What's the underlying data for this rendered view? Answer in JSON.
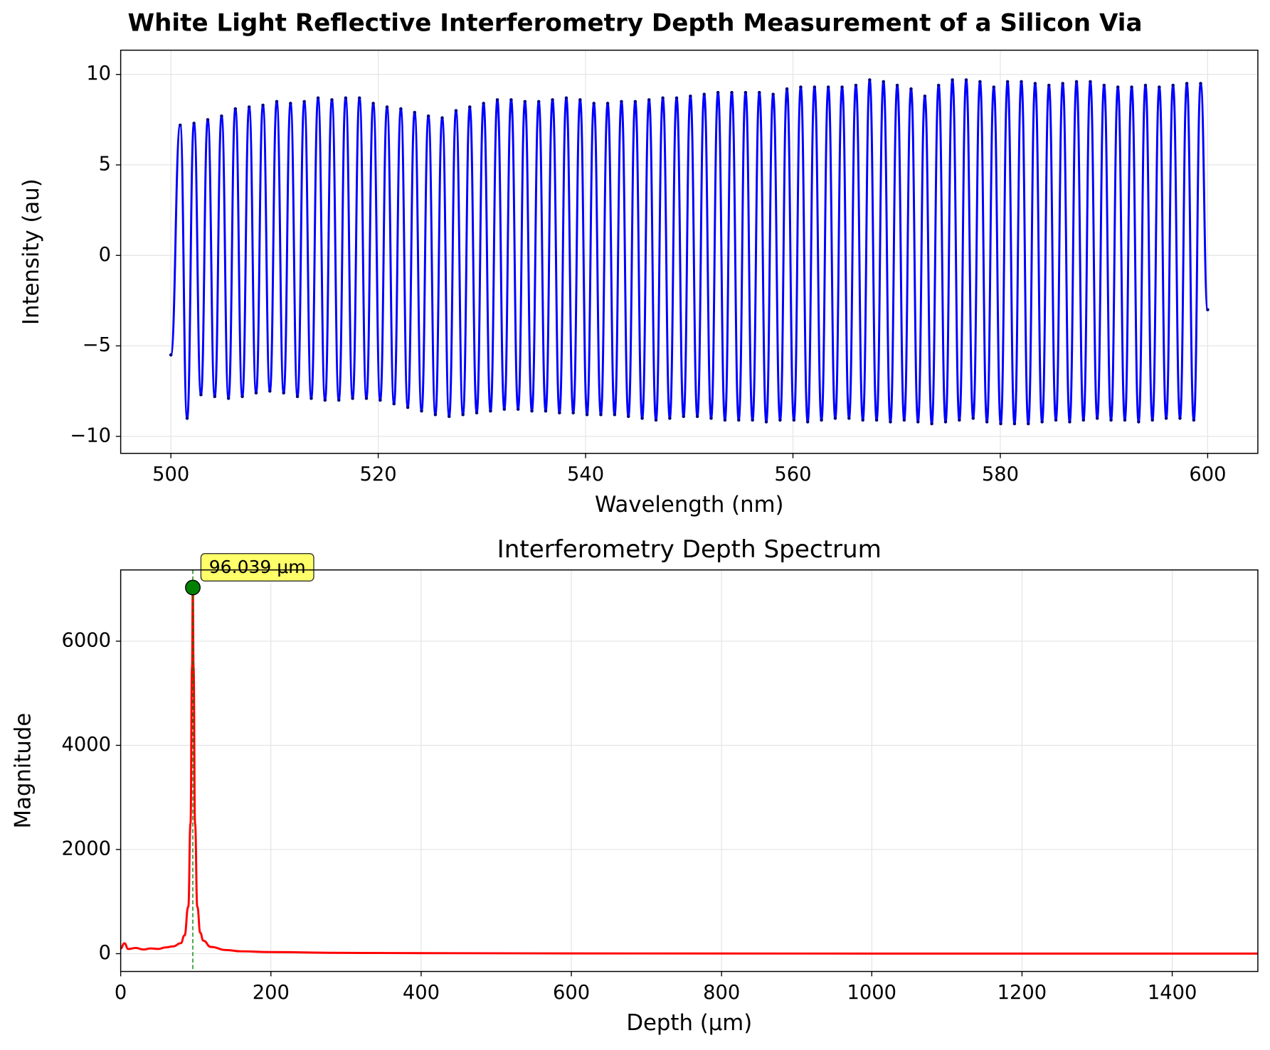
{
  "title": "White Light Reflective Interferometry Depth Measurement of a Silicon Via",
  "chart_data": [
    {
      "type": "line",
      "xlabel": "Wavelength (nm)",
      "ylabel": "Intensity (au)",
      "xlim": [
        495.16,
        604.84
      ],
      "ylim": [
        -10.94,
        11.34
      ],
      "xticks": [
        500,
        520,
        540,
        560,
        580,
        600
      ],
      "yticks": [
        {
          "value": -10,
          "label": "−10"
        },
        {
          "value": -5,
          "label": "−5"
        },
        0,
        5,
        10
      ],
      "grid": true,
      "series": [
        {
          "color": "#0000ff",
          "marker_color": "#00008b",
          "markers": true,
          "x": [
            500,
            500.9,
            501.57,
            502.23,
            502.9,
            503.56,
            504.23,
            504.89,
            505.56,
            506.22,
            506.89,
            507.55,
            508.22,
            508.88,
            509.55,
            510.21,
            510.88,
            511.54,
            512.21,
            512.87,
            513.54,
            514.2,
            514.87,
            515.53,
            516.2,
            516.86,
            517.53,
            518.19,
            518.86,
            519.52,
            520.19,
            520.85,
            521.52,
            522.18,
            522.85,
            523.51,
            524.18,
            524.84,
            525.51,
            526.17,
            526.84,
            527.5,
            528.17,
            528.83,
            529.5,
            530.16,
            530.83,
            531.49,
            532.16,
            532.82,
            533.49,
            534.15,
            534.82,
            535.48,
            536.15,
            536.81,
            537.48,
            538.14,
            538.81,
            539.47,
            540.14,
            540.8,
            541.47,
            542.13,
            542.8,
            543.46,
            544.13,
            544.79,
            545.46,
            546.12,
            546.79,
            547.45,
            548.12,
            548.78,
            549.45,
            550.11,
            550.78,
            551.44,
            552.11,
            552.77,
            553.44,
            554.1,
            554.77,
            555.43,
            556.1,
            556.76,
            557.43,
            558.09,
            558.76,
            559.42,
            560.09,
            560.75,
            561.42,
            562.08,
            562.75,
            563.41,
            564.08,
            564.74,
            565.41,
            566.07,
            566.74,
            567.4,
            568.07,
            568.73,
            569.4,
            570.06,
            570.73,
            571.39,
            572.06,
            572.72,
            573.39,
            574.05,
            574.72,
            575.38,
            576.05,
            576.71,
            577.38,
            578.04,
            578.71,
            579.37,
            580.04,
            580.7,
            581.37,
            582.03,
            582.7,
            583.36,
            584.03,
            584.69,
            585.36,
            586.02,
            586.69,
            587.35,
            588.02,
            588.68,
            589.35,
            590.01,
            590.68,
            591.34,
            592.01,
            592.67,
            593.34,
            594.0,
            594.67,
            595.33,
            596.0,
            596.66,
            597.33,
            597.99,
            598.66,
            599.32,
            600
          ],
          "values": [
            -5.5,
            7.2,
            -9.0,
            7.3,
            -7.7,
            7.5,
            -7.8,
            7.7,
            -7.9,
            8.1,
            -7.8,
            8.2,
            -7.6,
            8.3,
            -7.5,
            8.5,
            -7.6,
            8.4,
            -7.8,
            8.5,
            -7.9,
            8.7,
            -8.0,
            8.6,
            -8.0,
            8.7,
            -7.9,
            8.7,
            -7.9,
            8.4,
            -8.0,
            8.2,
            -8.2,
            8.1,
            -8.4,
            7.9,
            -8.6,
            7.7,
            -8.8,
            7.6,
            -8.9,
            8.0,
            -8.8,
            8.2,
            -8.7,
            8.4,
            -8.6,
            8.6,
            -8.5,
            8.6,
            -8.5,
            8.5,
            -8.6,
            8.5,
            -8.6,
            8.6,
            -8.7,
            8.7,
            -8.7,
            8.6,
            -8.8,
            8.4,
            -8.8,
            8.4,
            -8.8,
            8.5,
            -8.9,
            8.5,
            -9.0,
            8.6,
            -9.1,
            8.7,
            -9.0,
            8.7,
            -8.9,
            8.8,
            -8.9,
            8.9,
            -9.0,
            9.0,
            -9.1,
            9.0,
            -9.1,
            9.0,
            -9.1,
            9.0,
            -9.2,
            8.9,
            -9.1,
            9.2,
            -9.1,
            9.3,
            -9.2,
            9.3,
            -9.1,
            9.3,
            -9.0,
            9.3,
            -9.0,
            9.4,
            -9.1,
            9.7,
            -9.1,
            9.6,
            -9.2,
            9.4,
            -9.1,
            9.2,
            -9.2,
            8.8,
            -9.3,
            9.4,
            -9.2,
            9.7,
            -9.1,
            9.7,
            -9.0,
            9.6,
            -9.2,
            9.3,
            -9.3,
            9.6,
            -9.3,
            9.6,
            -9.3,
            9.5,
            -9.2,
            9.4,
            -9.1,
            9.5,
            -9.2,
            9.6,
            -9.1,
            9.6,
            -9.0,
            9.4,
            -9.1,
            9.3,
            -9.1,
            9.3,
            -9.2,
            9.4,
            -9.1,
            9.3,
            -9.0,
            9.4,
            -9.0,
            9.5,
            -9.1,
            9.5,
            -3.0
          ]
        }
      ]
    },
    {
      "type": "line",
      "title": "Interferometry Depth Spectrum",
      "xlabel": "Depth (μm)",
      "ylabel": "Magnitude",
      "xlim": [
        0,
        1514
      ],
      "ylim": [
        -342,
        7368
      ],
      "xticks": [
        0,
        200,
        400,
        600,
        800,
        1000,
        1200,
        1400
      ],
      "yticks": [
        0,
        2000,
        4000,
        6000
      ],
      "grid": true,
      "series": [
        {
          "color": "#ff0000",
          "markers": false,
          "x": [
            0,
            5,
            10,
            20,
            30,
            40,
            50,
            60,
            70,
            80,
            85,
            90,
            93,
            95,
            96.039,
            97,
            99,
            102,
            106,
            110,
            120,
            140,
            160,
            200,
            300,
            400,
            600,
            800,
            1000,
            1200,
            1514
          ],
          "values": [
            100,
            200,
            90,
            110,
            80,
            100,
            90,
            120,
            140,
            200,
            350,
            900,
            2500,
            5500,
            7030,
            5500,
            2500,
            900,
            400,
            250,
            130,
            70,
            45,
            30,
            15,
            10,
            5,
            3,
            2,
            1,
            1
          ]
        }
      ],
      "peak": {
        "x": 96.039,
        "y": 7030,
        "label": "96.039 μm",
        "color": "#008000",
        "label_color": "#ffff44"
      }
    }
  ]
}
